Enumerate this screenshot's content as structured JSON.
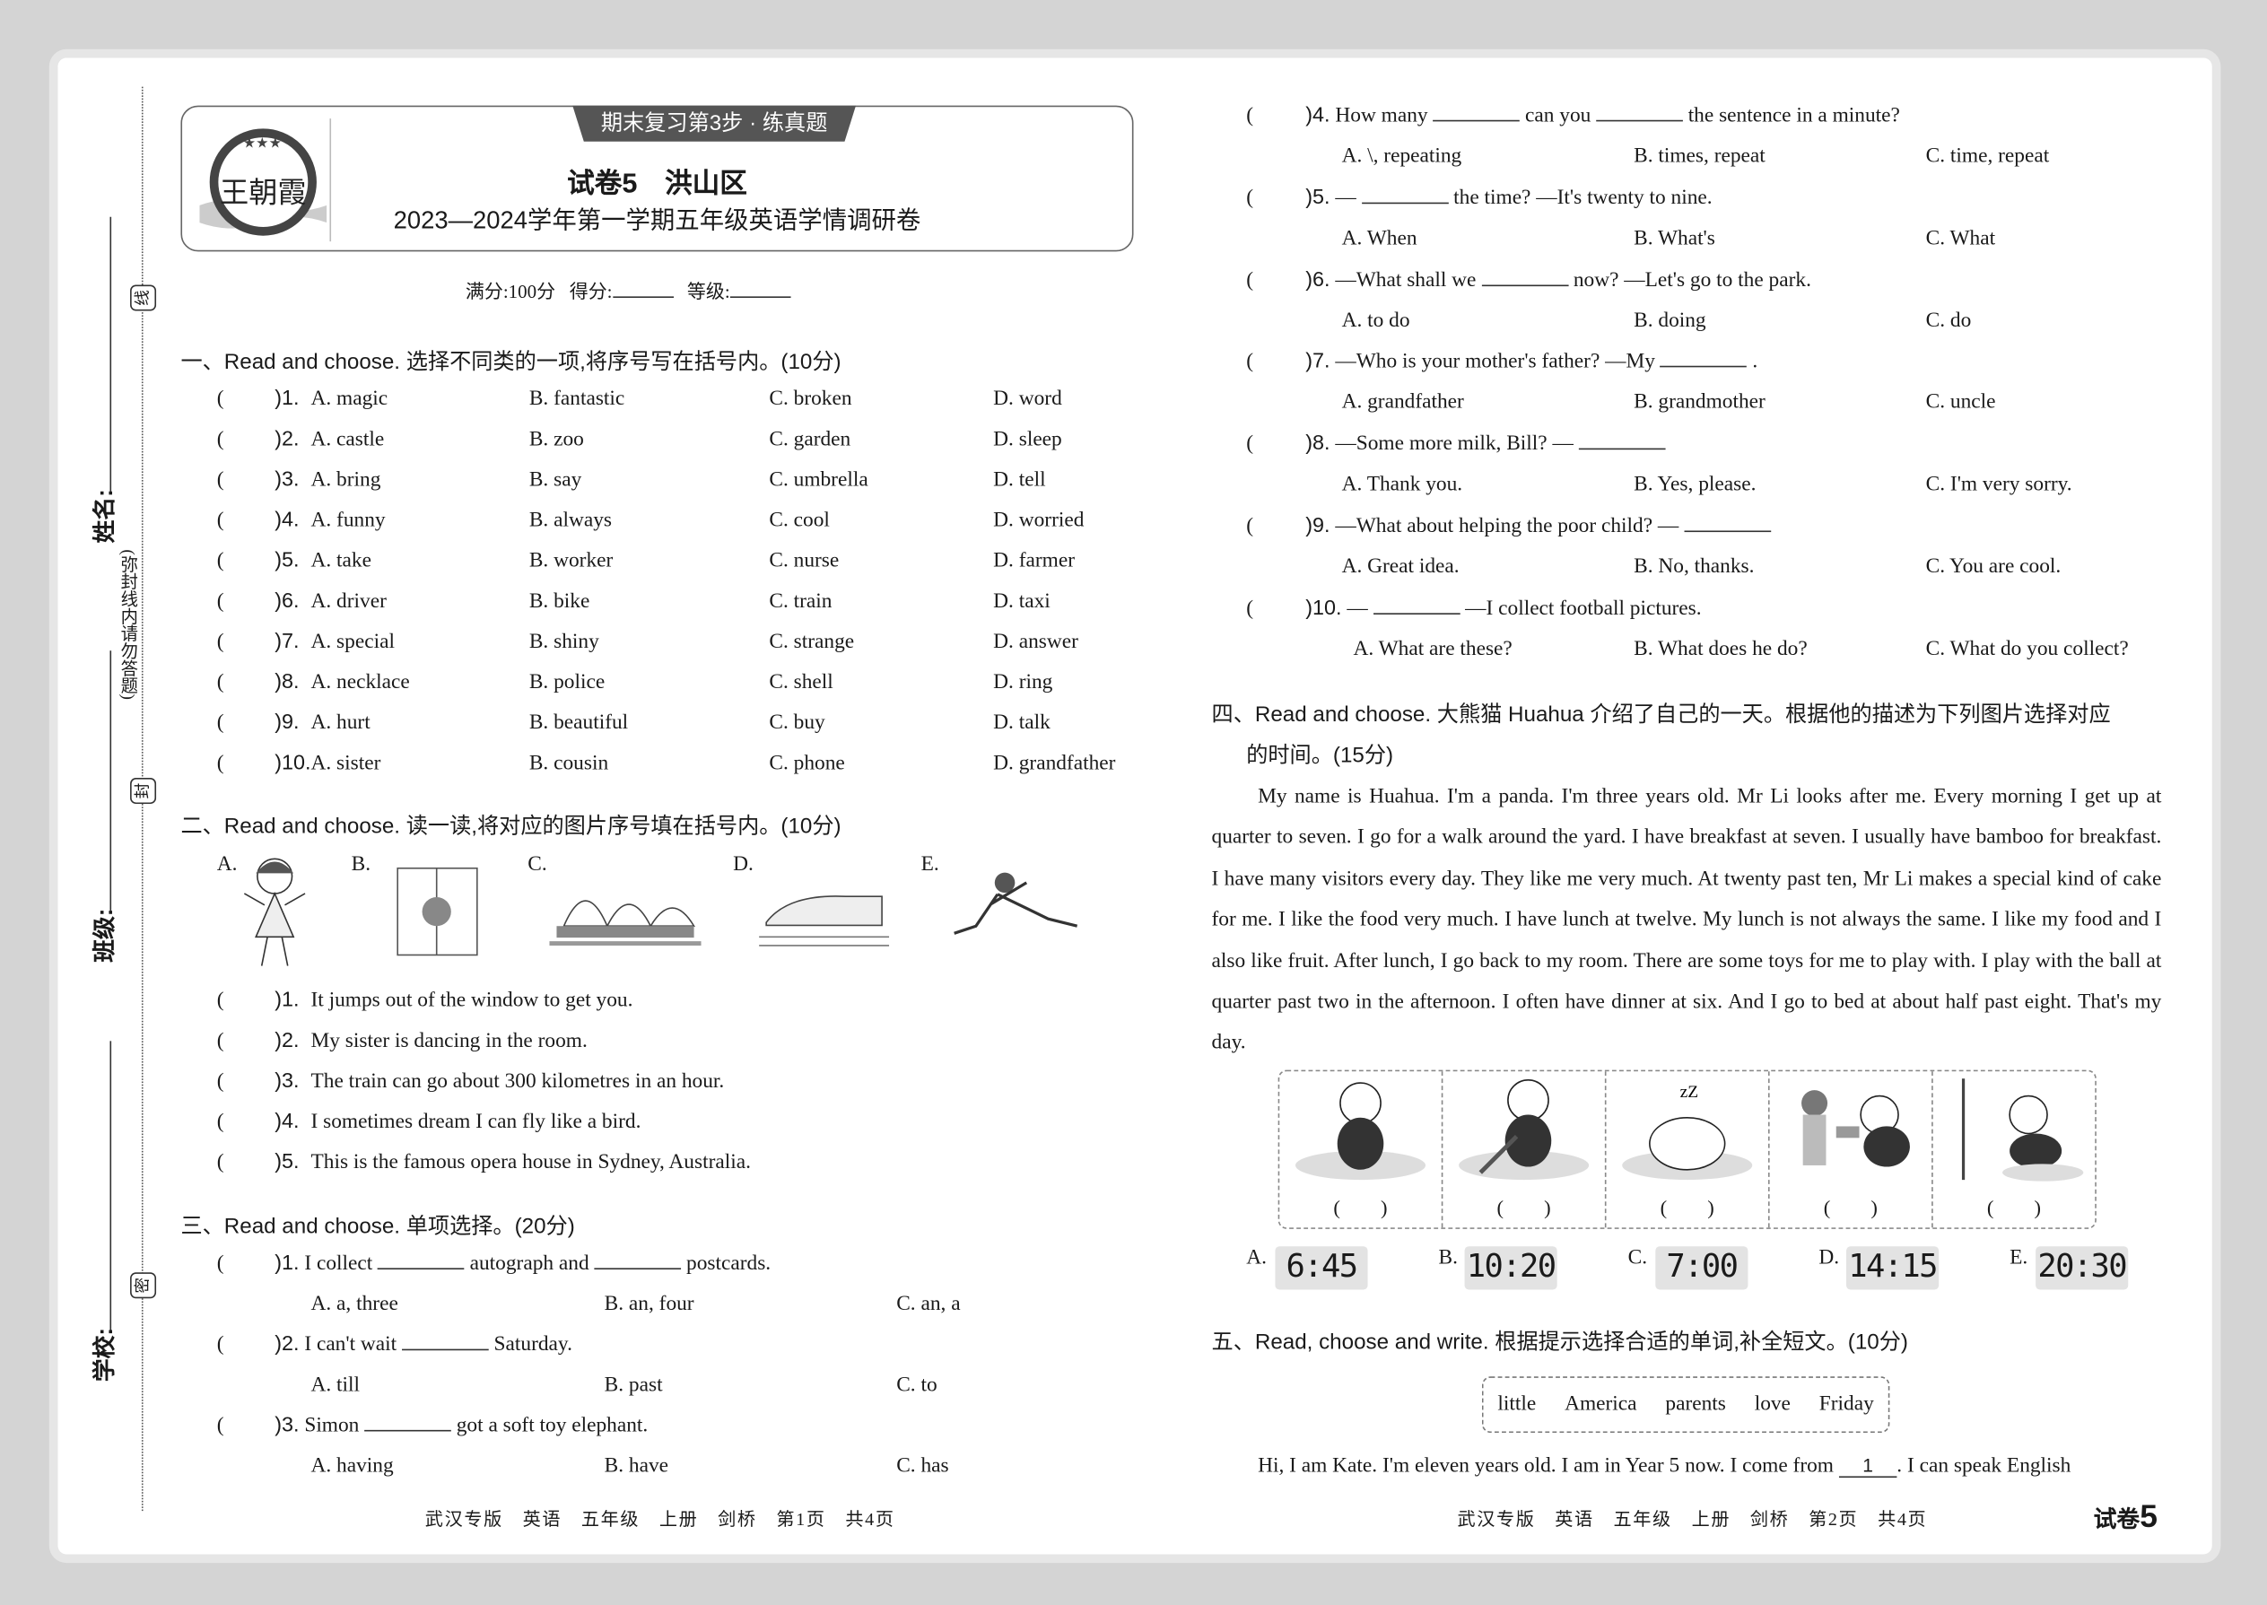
{
  "header": {
    "tab": "期末复习第3步 · 练真题",
    "title": "试卷5　洪山区",
    "subtitle": "2023—2024学年第一学期五年级英语学情调研卷",
    "logo_text": "王朝霞",
    "score_line": {
      "full": "满分:100分",
      "score": "得分:",
      "grade": "等级:"
    }
  },
  "margin": {
    "name": "姓名:",
    "class": "班级:",
    "school": "学校:",
    "notice": "(弥封线内请勿答题)",
    "seal_top": "线",
    "seal_mid": "封",
    "seal_bottom": "密"
  },
  "section1": {
    "title": "一、Read and choose. 选择不同类的一项,将序号写在括号内。(10分)",
    "items": [
      {
        "n": ")1.",
        "a": "A. magic",
        "b": "B. fantastic",
        "c": "C. broken",
        "d": "D. word"
      },
      {
        "n": ")2.",
        "a": "A. castle",
        "b": "B. zoo",
        "c": "C. garden",
        "d": "D. sleep"
      },
      {
        "n": ")3.",
        "a": "A. bring",
        "b": "B. say",
        "c": "C. umbrella",
        "d": "D. tell"
      },
      {
        "n": ")4.",
        "a": "A. funny",
        "b": "B. always",
        "c": "C. cool",
        "d": "D. worried"
      },
      {
        "n": ")5.",
        "a": "A. take",
        "b": "B. worker",
        "c": "C. nurse",
        "d": "D. farmer"
      },
      {
        "n": ")6.",
        "a": "A. driver",
        "b": "B. bike",
        "c": "C. train",
        "d": "D. taxi"
      },
      {
        "n": ")7.",
        "a": "A. special",
        "b": "B. shiny",
        "c": "C. strange",
        "d": "D. answer"
      },
      {
        "n": ")8.",
        "a": "A. necklace",
        "b": "B. police",
        "c": "C. shell",
        "d": "D. ring"
      },
      {
        "n": ")9.",
        "a": "A. hurt",
        "b": "B. beautiful",
        "c": "C. buy",
        "d": "D. talk"
      },
      {
        "n": ")10.",
        "a": "A. sister",
        "b": "B. cousin",
        "c": "C. phone",
        "d": "D. grandfather"
      }
    ]
  },
  "section2": {
    "title": "二、Read and choose. 读一读,将对应的图片序号填在括号内。(10分)",
    "pictures": [
      "A.",
      "B.",
      "C.",
      "D.",
      "E."
    ],
    "items": [
      {
        "n": ")1.",
        "text": "It jumps out of the window to get you."
      },
      {
        "n": ")2.",
        "text": "My sister is dancing in the room."
      },
      {
        "n": ")3.",
        "text": "The train can go about 300 kilometres in an hour."
      },
      {
        "n": ")4.",
        "text": "I sometimes dream I can fly like a bird."
      },
      {
        "n": ")5.",
        "text": "This is the famous opera house in Sydney, Australia."
      }
    ]
  },
  "section3": {
    "title": "三、Read and choose. 单项选择。(20分)",
    "items": [
      {
        "n": ")1.",
        "q1": "I collect",
        "q2": "autograph and",
        "q3": "postcards.",
        "q4": "",
        "a": "A. a, three",
        "b": "B. an, four",
        "c": "C. an, a"
      },
      {
        "n": ")2.",
        "q1": "I can't wait",
        "q2": "Saturday.",
        "q3": "",
        "q4": "",
        "a": "A. till",
        "b": "B. past",
        "c": "C. to"
      },
      {
        "n": ")3.",
        "q1": "Simon",
        "q2": "got a soft toy elephant.",
        "q3": "",
        "q4": "",
        "a": "A. having",
        "b": "B. have",
        "c": "C. has"
      },
      {
        "n": ")4.",
        "q1": "How many",
        "q2": "can you",
        "q3": "the sentence in a minute?",
        "q4": "",
        "a": "A. \\, repeating",
        "b": "B. times, repeat",
        "c": "C. time, repeat"
      },
      {
        "n": ")5.",
        "q1": "—",
        "q2": "the time? —It's twenty to nine.",
        "q3": "",
        "q4": "",
        "a": "A. When",
        "b": "B. What's",
        "c": "C. What"
      },
      {
        "n": ")6.",
        "q1": "—What shall we",
        "q2": "now? —Let's go to the park.",
        "q3": "",
        "q4": "",
        "a": "A. to do",
        "b": "B. doing",
        "c": "C. do"
      },
      {
        "n": ")7.",
        "q1": "—Who is your mother's father? —My",
        "q2": ".",
        "q3": "",
        "q4": "",
        "a": "A. grandfather",
        "b": "B. grandmother",
        "c": "C. uncle"
      },
      {
        "n": ")8.",
        "q1": "—Some more milk, Bill? —",
        "q2": "",
        "q3": "",
        "q4": "",
        "a": "A. Thank you.",
        "b": "B. Yes, please.",
        "c": "C. I'm very sorry."
      },
      {
        "n": ")9.",
        "q1": "—What about helping the poor child? —",
        "q2": "",
        "q3": "",
        "q4": "",
        "a": "A. Great idea.",
        "b": "B. No, thanks.",
        "c": "C. You are cool."
      },
      {
        "n": ")10.",
        "q1": "—",
        "q2": "—I collect football pictures.",
        "q3": "",
        "q4": "",
        "a": "A. What are these?",
        "b": "B. What does he do?",
        "c": "C. What do you collect?"
      }
    ]
  },
  "section4": {
    "title1": "四、Read and choose. 大熊猫 Huahua 介绍了自己的一天。根据他的描述为下列图片选择对应",
    "title2": "的时间。(15分)",
    "passage": "My name is Huahua. I'm a panda. I'm three years old. Mr Li looks after me. Every morning I get up at quarter to seven. I go for a walk around the yard. I have breakfast at seven. I usually have bamboo for breakfast. I have many visitors every day. They like me very much. At twenty past ten, Mr Li makes a special kind of cake for me. I like the food very much. I have lunch at twelve. My lunch is not always the same. I like my food and I also like fruit. After lunch, I go back to my room. There are some toys for me to play with. I play with the ball at quarter past two in the afternoon. I often have dinner at six. And I go to bed at about half past eight. That's my day.",
    "answer_paren": "(　　)",
    "clocks": [
      {
        "label": "A.",
        "time": "6:45"
      },
      {
        "label": "B.",
        "time": "10:20"
      },
      {
        "label": "C.",
        "time": "7:00"
      },
      {
        "label": "D.",
        "time": "14:15"
      },
      {
        "label": "E.",
        "time": "20:30"
      }
    ]
  },
  "section5": {
    "title": "五、Read, choose and write. 根据提示选择合适的单词,补全短文。(10分)",
    "words": [
      "little",
      "America",
      "parents",
      "love",
      "Friday"
    ],
    "text1": "Hi, I am Kate. I'm eleven years old. I am in Year 5 now. I come from",
    "blank1": "1",
    "text2": ". I can speak English"
  },
  "footer": {
    "left": "武汉专版　英语　五年级　上册　剑桥　第1页　共4页",
    "right": "武汉专版　英语　五年级　上册　剑桥　第2页　共4页",
    "badge_text": "试卷",
    "badge_num": "5"
  },
  "paren_open": "("
}
